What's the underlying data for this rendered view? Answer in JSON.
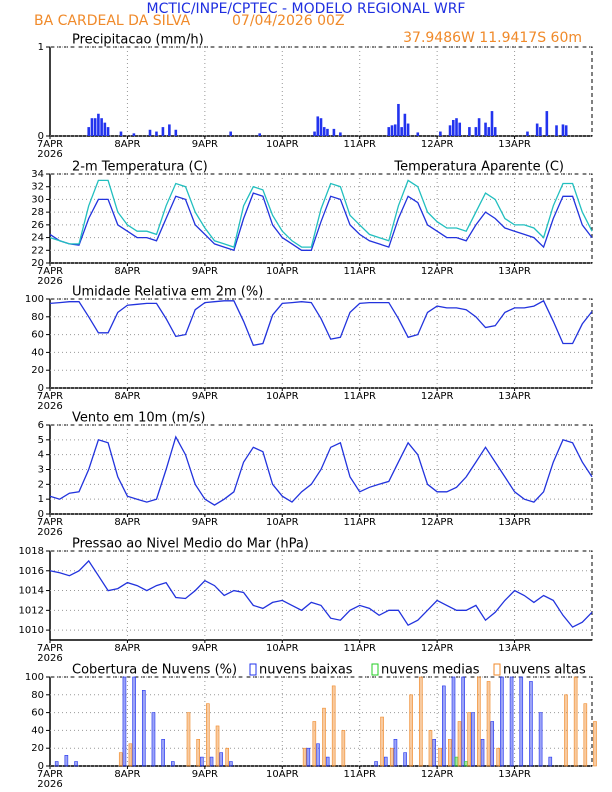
{
  "header": {
    "title": "MCTIC/INPE/CPTEC - MODELO REGIONAL WRF",
    "station": "BA CARDEAL DA SILVA",
    "run": "07/04/2026 00Z",
    "location": "37.9486W 11.9417S 60m"
  },
  "chart_data": [
    {
      "type": "bar",
      "title": "Precipitacao (mm/h)",
      "color": "#2233ee",
      "x_year": "2026",
      "xlim": [
        0,
        168
      ],
      "xticks": [
        {
          "value": 0,
          "label": "7APR"
        },
        {
          "value": 24,
          "label": "8APR"
        },
        {
          "value": 48,
          "label": "9APR"
        },
        {
          "value": 72,
          "label": "10APR"
        },
        {
          "value": 96,
          "label": "11APR"
        },
        {
          "value": 120,
          "label": "12APR"
        },
        {
          "value": 144,
          "label": "13APR"
        }
      ],
      "ylim": [
        0,
        1
      ],
      "yticks": [
        0,
        1
      ],
      "grid": true,
      "x": [
        12,
        13,
        14,
        15,
        16,
        17,
        18,
        22,
        26,
        31,
        33,
        35,
        37,
        39,
        56,
        65,
        82,
        83,
        84,
        85,
        86,
        88,
        90,
        105,
        106,
        107,
        108,
        109,
        110,
        111,
        114,
        121,
        124,
        125,
        126,
        127,
        130,
        132,
        133,
        135,
        136,
        137,
        138,
        148,
        151,
        152,
        154,
        157,
        159,
        160
      ],
      "values": [
        0.1,
        0.2,
        0.2,
        0.25,
        0.2,
        0.15,
        0.1,
        0.05,
        0.03,
        0.07,
        0.05,
        0.1,
        0.13,
        0.07,
        0.05,
        0.03,
        0.05,
        0.22,
        0.2,
        0.1,
        0.08,
        0.08,
        0.04,
        0.1,
        0.12,
        0.13,
        0.36,
        0.1,
        0.25,
        0.14,
        0.04,
        0.05,
        0.12,
        0.18,
        0.2,
        0.15,
        0.1,
        0.1,
        0.2,
        0.15,
        0.1,
        0.28,
        0.1,
        0.05,
        0.14,
        0.1,
        0.28,
        0.12,
        0.13,
        0.12
      ]
    },
    {
      "type": "line",
      "title": "2-m Temperatura (C)",
      "x_year": "2026",
      "xlim": [
        0,
        168
      ],
      "xticks": [
        {
          "value": 0,
          "label": "7APR"
        },
        {
          "value": 24,
          "label": "8APR"
        },
        {
          "value": 48,
          "label": "9APR"
        },
        {
          "value": 72,
          "label": "10APR"
        },
        {
          "value": 96,
          "label": "11APR"
        },
        {
          "value": 120,
          "label": "12APR"
        },
        {
          "value": 144,
          "label": "13APR"
        }
      ],
      "ylim": [
        20,
        34
      ],
      "yticks": [
        20,
        22,
        24,
        26,
        28,
        30,
        32,
        34
      ],
      "grid": true,
      "x": [
        0,
        3,
        6,
        9,
        12,
        15,
        18,
        21,
        24,
        27,
        30,
        33,
        36,
        39,
        42,
        45,
        48,
        51,
        54,
        57,
        60,
        63,
        66,
        69,
        72,
        75,
        78,
        81,
        84,
        87,
        90,
        93,
        96,
        99,
        102,
        105,
        108,
        111,
        114,
        117,
        120,
        123,
        126,
        129,
        132,
        135,
        138,
        141,
        144,
        147,
        150,
        153,
        156,
        159,
        162,
        165,
        168
      ],
      "series": [
        {
          "color": "#2233dd",
          "values": [
            24.5,
            23.5,
            23,
            22.8,
            27,
            30,
            30,
            26,
            25,
            24,
            24,
            23.5,
            27,
            30.5,
            30,
            26,
            24.5,
            23,
            22.5,
            22,
            27,
            31,
            30.5,
            26,
            24,
            23,
            22,
            22,
            26.5,
            30.5,
            30,
            26,
            24.5,
            23.5,
            23,
            22.5,
            27,
            30.5,
            29.5,
            26,
            25,
            24,
            24,
            23.5,
            26,
            28,
            27,
            25.5,
            25,
            24.5,
            24,
            22.5,
            27,
            30.5,
            30.5,
            26,
            24
          ]
        },
        {
          "name": "Temperatura Aparente (C)",
          "color": "#22bfbf",
          "values": [
            24,
            23.5,
            23,
            23,
            29,
            33,
            33,
            28,
            26,
            25,
            25,
            24.5,
            29,
            32.5,
            32,
            28,
            25.5,
            23.5,
            23,
            22.5,
            29,
            32,
            31.5,
            27.5,
            25,
            23.5,
            22.5,
            22.5,
            28.5,
            32.5,
            32,
            27.5,
            26,
            24.5,
            24,
            23.5,
            29,
            33,
            32,
            28,
            26.5,
            25.5,
            25.5,
            25,
            28,
            31,
            30,
            27,
            26,
            26,
            25.5,
            24,
            29,
            32.5,
            32.5,
            28,
            25
          ]
        }
      ]
    },
    {
      "type": "line",
      "title": "Umidade Relativa em 2m (%)",
      "color": "#2233dd",
      "x_year": "2026",
      "xlim": [
        0,
        168
      ],
      "xticks": [
        {
          "value": 0,
          "label": "7APR"
        },
        {
          "value": 24,
          "label": "8APR"
        },
        {
          "value": 48,
          "label": "9APR"
        },
        {
          "value": 72,
          "label": "10APR"
        },
        {
          "value": 96,
          "label": "11APR"
        },
        {
          "value": 120,
          "label": "12APR"
        },
        {
          "value": 144,
          "label": "13APR"
        }
      ],
      "ylim": [
        0,
        100
      ],
      "yticks": [
        0,
        20,
        40,
        60,
        80,
        100
      ],
      "grid": true,
      "x": [
        0,
        3,
        6,
        9,
        12,
        15,
        18,
        21,
        24,
        27,
        30,
        33,
        36,
        39,
        42,
        45,
        48,
        51,
        54,
        57,
        60,
        63,
        66,
        69,
        72,
        75,
        78,
        81,
        84,
        87,
        90,
        93,
        96,
        99,
        102,
        105,
        108,
        111,
        114,
        117,
        120,
        123,
        126,
        129,
        132,
        135,
        138,
        141,
        144,
        147,
        150,
        153,
        156,
        159,
        162,
        165,
        168
      ],
      "values": [
        95,
        96,
        97,
        97,
        80,
        62,
        62,
        85,
        93,
        94,
        95,
        95,
        78,
        58,
        60,
        88,
        96,
        97,
        98,
        98,
        75,
        48,
        50,
        82,
        95,
        96,
        97,
        96,
        78,
        55,
        57,
        85,
        95,
        96,
        96,
        96,
        78,
        57,
        60,
        85,
        92,
        90,
        90,
        88,
        80,
        68,
        70,
        85,
        90,
        90,
        92,
        98,
        75,
        50,
        50,
        72,
        86
      ]
    },
    {
      "type": "line",
      "title": "Vento em 10m (m/s)",
      "color": "#2233dd",
      "x_year": "2026",
      "xlim": [
        0,
        168
      ],
      "xticks": [
        {
          "value": 0,
          "label": "7APR"
        },
        {
          "value": 24,
          "label": "8APR"
        },
        {
          "value": 48,
          "label": "9APR"
        },
        {
          "value": 72,
          "label": "10APR"
        },
        {
          "value": 96,
          "label": "11APR"
        },
        {
          "value": 120,
          "label": "12APR"
        },
        {
          "value": 144,
          "label": "13APR"
        }
      ],
      "ylim": [
        0,
        6
      ],
      "yticks": [
        0,
        1,
        2,
        3,
        4,
        5,
        6
      ],
      "grid": true,
      "x": [
        0,
        3,
        6,
        9,
        12,
        15,
        18,
        21,
        24,
        27,
        30,
        33,
        36,
        39,
        42,
        45,
        48,
        51,
        54,
        57,
        60,
        63,
        66,
        69,
        72,
        75,
        78,
        81,
        84,
        87,
        90,
        93,
        96,
        99,
        102,
        105,
        108,
        111,
        114,
        117,
        120,
        123,
        126,
        129,
        132,
        135,
        138,
        141,
        144,
        147,
        150,
        153,
        156,
        159,
        162,
        165,
        168
      ],
      "values": [
        1.2,
        1,
        1.4,
        1.5,
        3,
        5,
        4.8,
        2.5,
        1.2,
        1,
        0.8,
        1,
        3,
        5.2,
        4,
        2,
        1,
        0.6,
        1,
        1.5,
        3.5,
        4.5,
        4.2,
        2,
        1.2,
        0.8,
        1.5,
        2,
        3,
        4.5,
        4.8,
        2.5,
        1.5,
        1.8,
        2,
        2.2,
        3.5,
        4.8,
        4,
        2,
        1.5,
        1.5,
        1.8,
        2.5,
        3.5,
        4.5,
        3.5,
        2.5,
        1.5,
        1,
        0.8,
        1.5,
        3.5,
        5,
        4.8,
        3.5,
        2.5
      ]
    },
    {
      "type": "line",
      "title": "Pressao ao Nivel Medio do Mar (hPa)",
      "color": "#2233dd",
      "x_year": "2026",
      "xlim": [
        0,
        168
      ],
      "xticks": [
        {
          "value": 0,
          "label": "7APR"
        },
        {
          "value": 24,
          "label": "8APR"
        },
        {
          "value": 48,
          "label": "9APR"
        },
        {
          "value": 72,
          "label": "10APR"
        },
        {
          "value": 96,
          "label": "11APR"
        },
        {
          "value": 120,
          "label": "12APR"
        },
        {
          "value": 144,
          "label": "13APR"
        }
      ],
      "ylim": [
        1009,
        1018
      ],
      "yticks": [
        1010,
        1012,
        1014,
        1016,
        1018
      ],
      "grid": true,
      "x": [
        0,
        3,
        6,
        9,
        12,
        15,
        18,
        21,
        24,
        27,
        30,
        33,
        36,
        39,
        42,
        45,
        48,
        51,
        54,
        57,
        60,
        63,
        66,
        69,
        72,
        75,
        78,
        81,
        84,
        87,
        90,
        93,
        96,
        99,
        102,
        105,
        108,
        111,
        114,
        117,
        120,
        123,
        126,
        129,
        132,
        135,
        138,
        141,
        144,
        147,
        150,
        153,
        156,
        159,
        162,
        165,
        168
      ],
      "values": [
        1016,
        1015.8,
        1015.5,
        1016,
        1017,
        1015.5,
        1014,
        1014.2,
        1014.8,
        1014.5,
        1014,
        1014.5,
        1014.8,
        1013.3,
        1013.2,
        1014,
        1015,
        1014.5,
        1013.5,
        1014,
        1013.8,
        1012.5,
        1012.2,
        1012.8,
        1013,
        1012.5,
        1012,
        1012.8,
        1012.5,
        1011.2,
        1011,
        1012,
        1012.5,
        1012.2,
        1011.5,
        1012,
        1012,
        1010.5,
        1011,
        1012,
        1013,
        1012.5,
        1012,
        1012,
        1012.5,
        1011,
        1011.8,
        1013,
        1014,
        1013.5,
        1012.8,
        1013.5,
        1013,
        1011.5,
        1010.3,
        1010.8,
        1011.8
      ]
    },
    {
      "type": "bar",
      "title": "Cobertura de Nuvens (%)",
      "x_year": "2026",
      "xlim": [
        0,
        168
      ],
      "xticks": [
        {
          "value": 0,
          "label": "7APR"
        },
        {
          "value": 24,
          "label": "8APR"
        },
        {
          "value": 48,
          "label": "9APR"
        },
        {
          "value": 72,
          "label": "10APR"
        },
        {
          "value": 96,
          "label": "11APR"
        },
        {
          "value": 120,
          "label": "12APR"
        },
        {
          "value": 144,
          "label": "13APR"
        }
      ],
      "ylim": [
        0,
        100
      ],
      "yticks": [
        0,
        20,
        40,
        60,
        80,
        100
      ],
      "grid": true,
      "x": [
        0,
        3,
        6,
        9,
        12,
        15,
        18,
        21,
        24,
        27,
        30,
        33,
        36,
        39,
        42,
        45,
        48,
        51,
        54,
        57,
        60,
        63,
        66,
        69,
        72,
        75,
        78,
        81,
        84,
        87,
        90,
        93,
        96,
        99,
        102,
        105,
        108,
        111,
        114,
        117,
        120,
        123,
        126,
        129,
        132,
        135,
        138,
        141,
        144,
        147,
        150,
        153,
        156,
        159,
        162,
        165,
        168
      ],
      "series": [
        {
          "name": "nuvens baixas",
          "color": "#2233ee",
          "values": [
            0,
            5,
            12,
            5,
            0,
            0,
            0,
            0,
            100,
            100,
            85,
            60,
            30,
            5,
            0,
            0,
            10,
            10,
            15,
            5,
            0,
            0,
            0,
            0,
            0,
            0,
            0,
            20,
            25,
            10,
            0,
            0,
            0,
            0,
            5,
            10,
            30,
            15,
            0,
            0,
            30,
            90,
            100,
            100,
            60,
            30,
            50,
            100,
            100,
            100,
            95,
            60,
            10,
            0,
            0,
            0,
            0
          ]
        },
        {
          "name": "nuvens medias",
          "color": "#22cc22",
          "values": [
            0,
            0,
            0,
            0,
            0,
            0,
            0,
            0,
            0,
            0,
            0,
            0,
            0,
            0,
            0,
            0,
            0,
            0,
            0,
            0,
            0,
            0,
            0,
            0,
            0,
            0,
            0,
            0,
            0,
            0,
            0,
            0,
            0,
            0,
            0,
            0,
            0,
            0,
            0,
            0,
            0,
            0,
            10,
            5,
            0,
            0,
            0,
            0,
            0,
            0,
            0,
            0,
            0,
            0,
            0,
            0,
            0
          ]
        },
        {
          "name": "nuvens altas",
          "color": "#f08a2a",
          "values": [
            0,
            0,
            0,
            0,
            0,
            0,
            0,
            15,
            25,
            0,
            0,
            0,
            0,
            0,
            60,
            30,
            70,
            45,
            20,
            0,
            0,
            0,
            0,
            0,
            0,
            0,
            20,
            50,
            65,
            90,
            40,
            0,
            0,
            0,
            55,
            20,
            0,
            80,
            100,
            40,
            20,
            30,
            50,
            60,
            100,
            95,
            20,
            0,
            0,
            0,
            0,
            0,
            0,
            80,
            100,
            70,
            50
          ]
        }
      ]
    }
  ]
}
